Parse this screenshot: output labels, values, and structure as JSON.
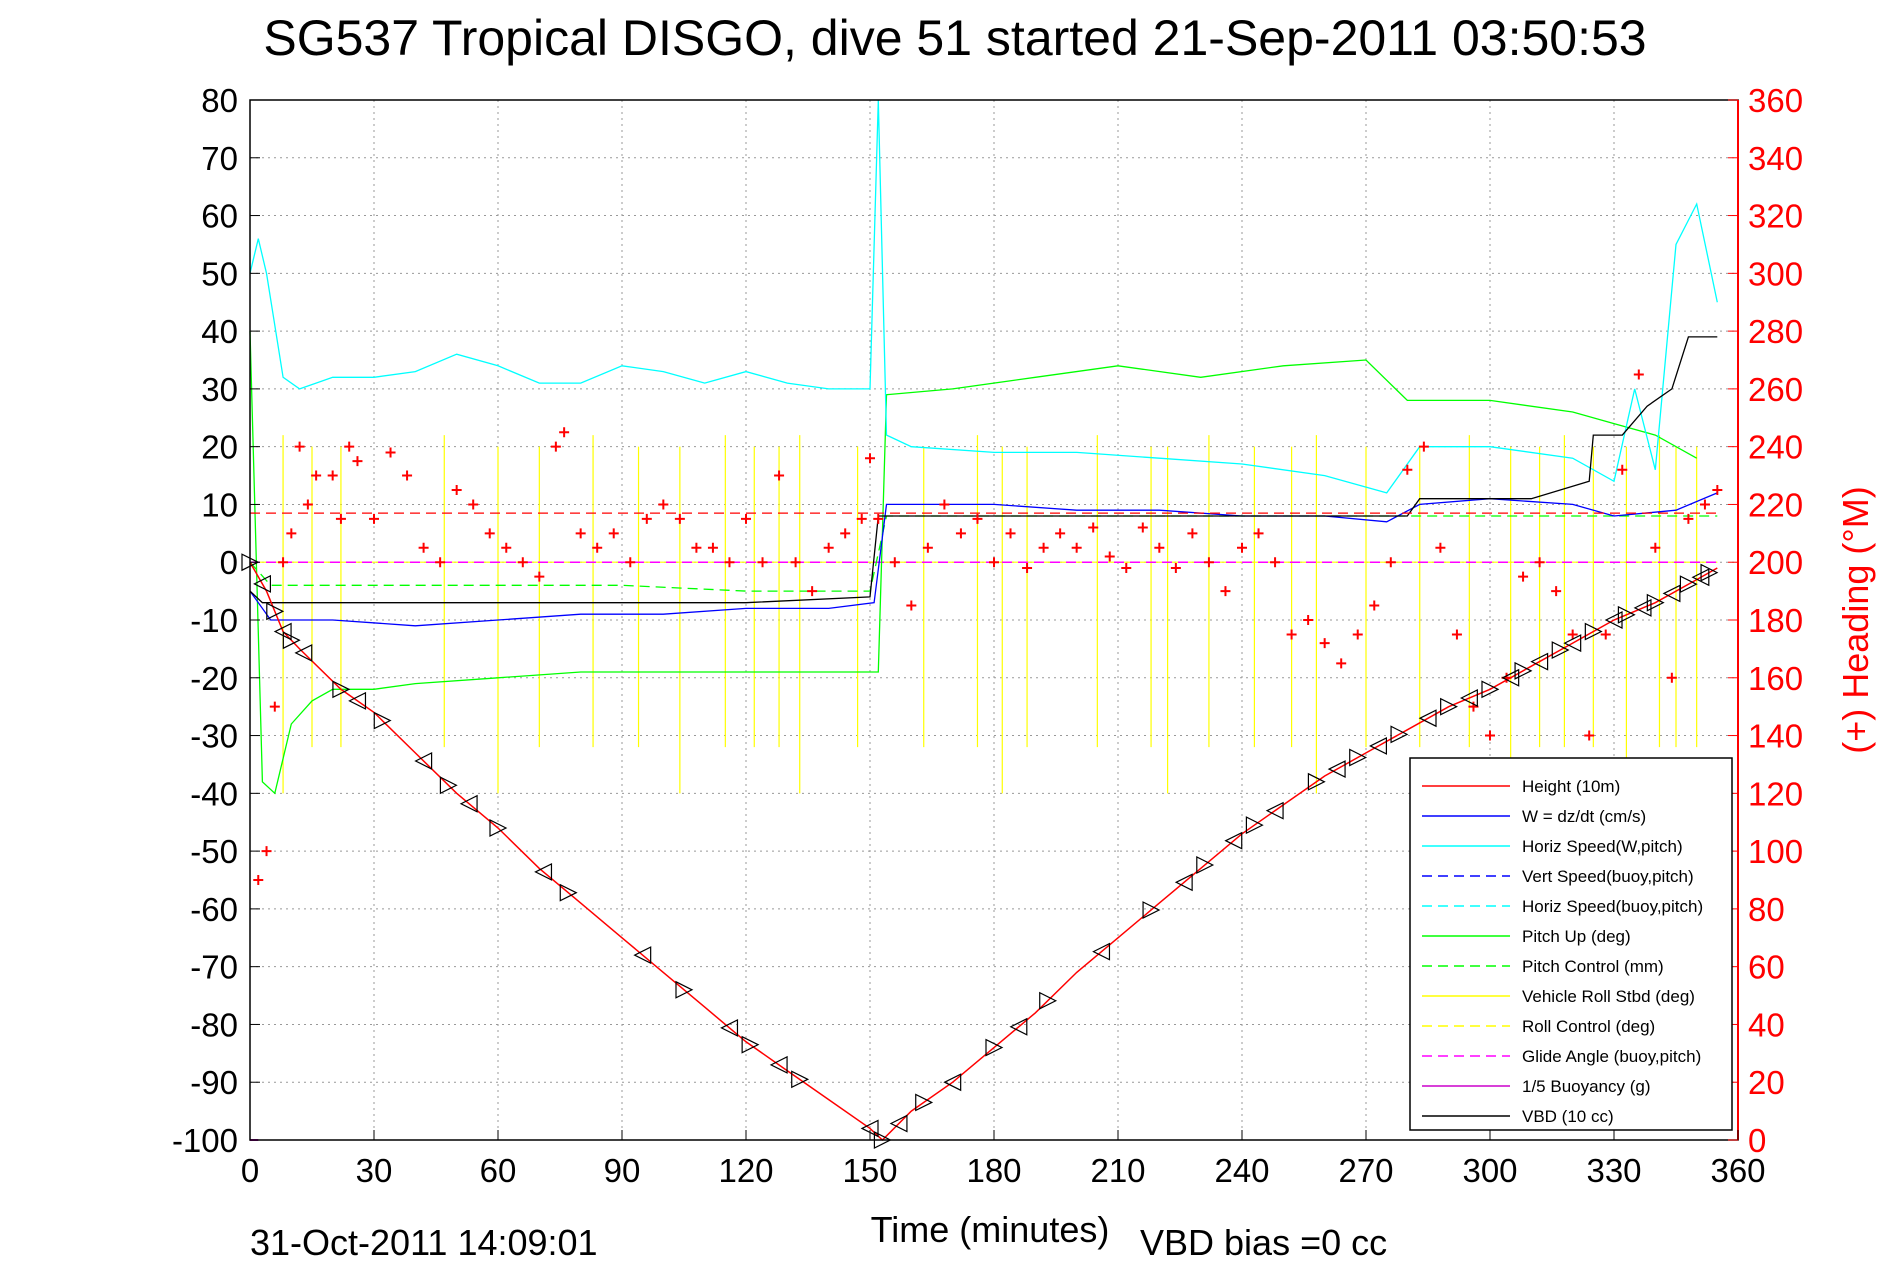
{
  "colors": {
    "height": "#ff0000",
    "w": "#0000ff",
    "horiz_speed": "#00ffff",
    "pitch": "#00ff00",
    "roll": "#ffff00",
    "glide": "#ff00ff",
    "buoyancy": "#cc00cc",
    "vbd": "#000000",
    "heading": "#ff0000"
  },
  "chart_data": {
    "type": "line",
    "title": "SG537 Tropical DISGO, dive 51 started 21-Sep-2011 03:50:53",
    "xlabel": "Time (minutes)",
    "ylabel_right": "(+) Heading (°M)",
    "xlim": [
      0,
      360
    ],
    "ylim_left": [
      -100,
      80
    ],
    "ylim_right": [
      0,
      360
    ],
    "x_ticks": [
      0,
      30,
      60,
      90,
      120,
      150,
      180,
      210,
      240,
      270,
      300,
      330,
      360
    ],
    "y_ticks_left": [
      80,
      70,
      60,
      50,
      40,
      30,
      20,
      10,
      0,
      -10,
      -20,
      -30,
      -40,
      -50,
      -60,
      -70,
      -80,
      -90,
      -100
    ],
    "y_ticks_right": [
      360,
      340,
      320,
      300,
      280,
      260,
      240,
      220,
      200,
      180,
      160,
      140,
      120,
      100,
      80,
      60,
      40,
      20,
      0
    ],
    "grid": true,
    "legend_position": "bottom-right",
    "footer_date": "31-Oct-2011 14:09:01",
    "footer_note": "VBD bias =0 cc",
    "legend": [
      {
        "label": "Height (10m)",
        "color": "#ff0000",
        "style": "solid"
      },
      {
        "label": "W = dz/dt (cm/s)",
        "color": "#0000ff",
        "style": "solid"
      },
      {
        "label": "Horiz Speed(W,pitch)",
        "color": "#00ffff",
        "style": "solid"
      },
      {
        "label": "Vert Speed(buoy,pitch)",
        "color": "#0000ff",
        "style": "dashed"
      },
      {
        "label": "Horiz Speed(buoy,pitch)",
        "color": "#00ffff",
        "style": "dashed"
      },
      {
        "label": "Pitch Up (deg)",
        "color": "#00ff00",
        "style": "solid"
      },
      {
        "label": "Pitch Control (mm)",
        "color": "#00ff00",
        "style": "dashed"
      },
      {
        "label": "Vehicle Roll Stbd (deg)",
        "color": "#ffff00",
        "style": "solid"
      },
      {
        "label": "Roll Control (deg)",
        "color": "#ffff00",
        "style": "dashed"
      },
      {
        "label": "Glide Angle (buoy,pitch)",
        "color": "#ff00ff",
        "style": "dashed"
      },
      {
        "label": "1/5 Buoyancy (g)",
        "color": "#cc00cc",
        "style": "solid"
      },
      {
        "label": "VBD (10 cc)",
        "color": "#000000",
        "style": "solid"
      }
    ],
    "series": {
      "height": [
        [
          0,
          0
        ],
        [
          4,
          -5
        ],
        [
          8,
          -12
        ],
        [
          12,
          -15
        ],
        [
          22,
          -22
        ],
        [
          30,
          -26
        ],
        [
          40,
          -33
        ],
        [
          50,
          -40
        ],
        [
          60,
          -46
        ],
        [
          70,
          -53
        ],
        [
          80,
          -59
        ],
        [
          90,
          -65
        ],
        [
          100,
          -71
        ],
        [
          110,
          -77
        ],
        [
          120,
          -83
        ],
        [
          130,
          -88
        ],
        [
          140,
          -93
        ],
        [
          150,
          -98
        ],
        [
          153,
          -100
        ],
        [
          160,
          -95
        ],
        [
          170,
          -90
        ],
        [
          180,
          -84
        ],
        [
          190,
          -78
        ],
        [
          200,
          -71
        ],
        [
          210,
          -65
        ],
        [
          220,
          -59
        ],
        [
          230,
          -53
        ],
        [
          240,
          -47
        ],
        [
          250,
          -42
        ],
        [
          260,
          -37
        ],
        [
          270,
          -33
        ],
        [
          280,
          -29
        ],
        [
          290,
          -25
        ],
        [
          300,
          -22
        ],
        [
          310,
          -18
        ],
        [
          320,
          -14
        ],
        [
          330,
          -10
        ],
        [
          340,
          -7
        ],
        [
          350,
          -3
        ],
        [
          355,
          -1
        ]
      ],
      "height_markers_x": [
        0,
        3,
        6,
        8,
        10,
        13,
        22,
        26,
        32,
        42,
        48,
        53,
        60,
        71,
        77,
        95,
        105,
        116,
        121,
        128,
        133,
        150,
        153,
        157,
        163,
        170,
        180,
        186,
        193,
        206,
        218,
        226,
        231,
        238,
        243,
        248,
        258,
        263,
        268,
        273,
        278,
        285,
        290,
        295,
        300,
        305,
        308,
        312,
        317,
        320,
        325,
        330,
        333,
        337,
        340,
        344,
        348,
        351,
        353
      ],
      "w": [
        [
          0,
          -5
        ],
        [
          5,
          -10
        ],
        [
          10,
          -10
        ],
        [
          20,
          -10
        ],
        [
          40,
          -11
        ],
        [
          60,
          -10
        ],
        [
          80,
          -9
        ],
        [
          100,
          -9
        ],
        [
          120,
          -8
        ],
        [
          140,
          -8
        ],
        [
          151,
          -7
        ],
        [
          154,
          10
        ],
        [
          160,
          10
        ],
        [
          180,
          10
        ],
        [
          200,
          9
        ],
        [
          220,
          9
        ],
        [
          240,
          8
        ],
        [
          260,
          8
        ],
        [
          275,
          7
        ],
        [
          283,
          10
        ],
        [
          300,
          11
        ],
        [
          320,
          10
        ],
        [
          330,
          8
        ],
        [
          345,
          9
        ],
        [
          355,
          12
        ]
      ],
      "horiz_speed": [
        [
          0,
          50
        ],
        [
          2,
          56
        ],
        [
          4,
          50
        ],
        [
          8,
          32
        ],
        [
          12,
          30
        ],
        [
          20,
          32
        ],
        [
          30,
          32
        ],
        [
          40,
          33
        ],
        [
          50,
          36
        ],
        [
          60,
          34
        ],
        [
          70,
          31
        ],
        [
          80,
          31
        ],
        [
          90,
          34
        ],
        [
          100,
          33
        ],
        [
          110,
          31
        ],
        [
          120,
          33
        ],
        [
          130,
          31
        ],
        [
          140,
          30
        ],
        [
          150,
          30
        ],
        [
          152,
          80
        ],
        [
          154,
          22
        ],
        [
          160,
          20
        ],
        [
          180,
          19
        ],
        [
          200,
          19
        ],
        [
          220,
          18
        ],
        [
          240,
          17
        ],
        [
          260,
          15
        ],
        [
          275,
          12
        ],
        [
          283,
          20
        ],
        [
          300,
          20
        ],
        [
          320,
          18
        ],
        [
          330,
          14
        ],
        [
          335,
          30
        ],
        [
          340,
          16
        ],
        [
          345,
          55
        ],
        [
          350,
          62
        ],
        [
          355,
          45
        ]
      ],
      "pitch": [
        [
          0,
          40
        ],
        [
          3,
          -38
        ],
        [
          6,
          -40
        ],
        [
          10,
          -28
        ],
        [
          15,
          -24
        ],
        [
          20,
          -22
        ],
        [
          30,
          -22
        ],
        [
          40,
          -21
        ],
        [
          60,
          -20
        ],
        [
          80,
          -19
        ],
        [
          100,
          -19
        ],
        [
          120,
          -19
        ],
        [
          140,
          -19
        ],
        [
          152,
          -19
        ],
        [
          154,
          29
        ],
        [
          170,
          30
        ],
        [
          190,
          32
        ],
        [
          210,
          34
        ],
        [
          230,
          32
        ],
        [
          250,
          34
        ],
        [
          270,
          35
        ],
        [
          280,
          28
        ],
        [
          300,
          28
        ],
        [
          320,
          26
        ],
        [
          330,
          24
        ],
        [
          340,
          22
        ],
        [
          350,
          18
        ]
      ],
      "pitch_control": [
        [
          0,
          0
        ],
        [
          5,
          -4
        ],
        [
          30,
          -4
        ],
        [
          60,
          -4
        ],
        [
          90,
          -4
        ],
        [
          120,
          -5
        ],
        [
          150,
          -5
        ],
        [
          154,
          8
        ],
        [
          190,
          8
        ],
        [
          230,
          8
        ],
        [
          270,
          8
        ],
        [
          300,
          8
        ],
        [
          355,
          8
        ]
      ],
      "roll_spikes_x": [
        8,
        15,
        22,
        47,
        60,
        70,
        83,
        94,
        104,
        115,
        122,
        128,
        133,
        147,
        163,
        176,
        182,
        188,
        205,
        218,
        222,
        232,
        243,
        252,
        258,
        270,
        283,
        295,
        305,
        312,
        318,
        325,
        333,
        341,
        345,
        350
      ],
      "glide": [
        [
          0,
          -20
        ],
        [
          2,
          0
        ],
        [
          150,
          0
        ],
        [
          152,
          0
        ],
        [
          355,
          0
        ]
      ],
      "vbd": [
        [
          0,
          -5
        ],
        [
          3,
          -7
        ],
        [
          10,
          -7
        ],
        [
          30,
          -7
        ],
        [
          60,
          -7
        ],
        [
          90,
          -7
        ],
        [
          120,
          -7
        ],
        [
          150,
          -6
        ],
        [
          152,
          8
        ],
        [
          190,
          8
        ],
        [
          230,
          8
        ],
        [
          260,
          8
        ],
        [
          280,
          8
        ],
        [
          283,
          11
        ],
        [
          300,
          11
        ],
        [
          310,
          11
        ],
        [
          324,
          14
        ],
        [
          325,
          22
        ],
        [
          332,
          22
        ],
        [
          338,
          27
        ],
        [
          344,
          30
        ],
        [
          348,
          39
        ],
        [
          355,
          39
        ]
      ],
      "heading": [
        [
          2,
          90
        ],
        [
          4,
          100
        ],
        [
          6,
          150
        ],
        [
          8,
          200
        ],
        [
          10,
          210
        ],
        [
          12,
          240
        ],
        [
          14,
          220
        ],
        [
          16,
          230
        ],
        [
          20,
          230
        ],
        [
          22,
          215
        ],
        [
          24,
          240
        ],
        [
          26,
          235
        ],
        [
          30,
          215
        ],
        [
          34,
          238
        ],
        [
          38,
          230
        ],
        [
          42,
          205
        ],
        [
          46,
          200
        ],
        [
          50,
          225
        ],
        [
          54,
          220
        ],
        [
          58,
          210
        ],
        [
          62,
          205
        ],
        [
          66,
          200
        ],
        [
          70,
          195
        ],
        [
          74,
          240
        ],
        [
          76,
          245
        ],
        [
          80,
          210
        ],
        [
          84,
          205
        ],
        [
          88,
          210
        ],
        [
          92,
          200
        ],
        [
          96,
          215
        ],
        [
          100,
          220
        ],
        [
          104,
          215
        ],
        [
          108,
          205
        ],
        [
          112,
          205
        ],
        [
          116,
          200
        ],
        [
          120,
          215
        ],
        [
          124,
          200
        ],
        [
          128,
          230
        ],
        [
          132,
          200
        ],
        [
          136,
          190
        ],
        [
          140,
          205
        ],
        [
          144,
          210
        ],
        [
          148,
          215
        ],
        [
          150,
          236
        ],
        [
          152,
          215
        ],
        [
          156,
          200
        ],
        [
          160,
          185
        ],
        [
          164,
          205
        ],
        [
          168,
          220
        ],
        [
          172,
          210
        ],
        [
          176,
          215
        ],
        [
          180,
          200
        ],
        [
          184,
          210
        ],
        [
          188,
          198
        ],
        [
          192,
          205
        ],
        [
          196,
          210
        ],
        [
          200,
          205
        ],
        [
          204,
          212
        ],
        [
          208,
          202
        ],
        [
          212,
          198
        ],
        [
          216,
          212
        ],
        [
          220,
          205
        ],
        [
          224,
          198
        ],
        [
          228,
          210
        ],
        [
          232,
          200
        ],
        [
          236,
          190
        ],
        [
          240,
          205
        ],
        [
          244,
          210
        ],
        [
          248,
          200
        ],
        [
          252,
          175
        ],
        [
          256,
          180
        ],
        [
          260,
          172
        ],
        [
          264,
          165
        ],
        [
          268,
          175
        ],
        [
          272,
          185
        ],
        [
          276,
          200
        ],
        [
          280,
          232
        ],
        [
          284,
          240
        ],
        [
          288,
          205
        ],
        [
          292,
          175
        ],
        [
          296,
          150
        ],
        [
          300,
          140
        ],
        [
          304,
          160
        ],
        [
          308,
          195
        ],
        [
          312,
          200
        ],
        [
          316,
          190
        ],
        [
          320,
          175
        ],
        [
          324,
          140
        ],
        [
          328,
          175
        ],
        [
          332,
          232
        ],
        [
          336,
          265
        ],
        [
          340,
          205
        ],
        [
          344,
          160
        ],
        [
          348,
          215
        ],
        [
          352,
          220
        ],
        [
          355,
          225
        ]
      ],
      "heading_mean": 217,
      "buoyancy": [
        [
          0,
          -100
        ],
        [
          2,
          -100
        ]
      ]
    }
  }
}
